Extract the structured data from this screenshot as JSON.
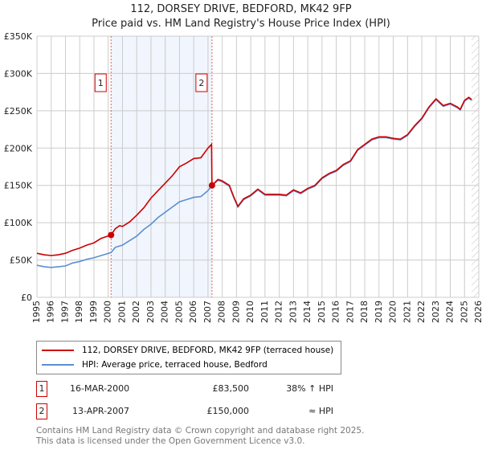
{
  "chart_data": {
    "type": "line",
    "title": "112, DORSEY DRIVE, BEDFORD, MK42 9FP",
    "subtitle": "Price paid vs. HM Land Registry's House Price Index (HPI)",
    "xlim": [
      1995,
      2026
    ],
    "ylim": [
      0,
      350000
    ],
    "x_ticks": [
      "1995",
      "1996",
      "1997",
      "1998",
      "1999",
      "2000",
      "2001",
      "2002",
      "2003",
      "2004",
      "2005",
      "2006",
      "2007",
      "2008",
      "2009",
      "2010",
      "2011",
      "2012",
      "2013",
      "2014",
      "2015",
      "2016",
      "2017",
      "2018",
      "2019",
      "2020",
      "2021",
      "2022",
      "2023",
      "2024",
      "2025",
      "2026"
    ],
    "y_ticks": [
      {
        "v": 0,
        "label": "£0"
      },
      {
        "v": 50000,
        "label": "£50K"
      },
      {
        "v": 100000,
        "label": "£100K"
      },
      {
        "v": 150000,
        "label": "£150K"
      },
      {
        "v": 200000,
        "label": "£200K"
      },
      {
        "v": 250000,
        "label": "£250K"
      },
      {
        "v": 300000,
        "label": "£300K"
      },
      {
        "v": 350000,
        "label": "£350K"
      }
    ],
    "grid": true,
    "series": [
      {
        "name": "112, DORSEY DRIVE, BEDFORD, MK42 9FP (terraced house)",
        "color": "#cc0000",
        "x": [
          1995,
          1995.5,
          1996,
          1996.5,
          1997,
          1997.5,
          1998,
          1998.5,
          1999,
          1999.5,
          2000.2,
          2000.5,
          2000.8,
          2001,
          2001.5,
          2002,
          2002.5,
          2003,
          2003.5,
          2004,
          2004.5,
          2005,
          2005.5,
          2006,
          2006.5,
          2007,
          2007.25,
          2007.28,
          2007.7,
          2008,
          2008.5,
          2008.8,
          2009.1,
          2009.5,
          2010,
          2010.5,
          2011,
          2011.5,
          2012,
          2012.5,
          2013,
          2013.5,
          2014,
          2014.5,
          2015,
          2015.5,
          2016,
          2016.5,
          2017,
          2017.5,
          2018,
          2018.5,
          2019,
          2019.5,
          2020,
          2020.5,
          2021,
          2021.5,
          2022,
          2022.5,
          2023,
          2023.5,
          2024,
          2024.5,
          2024.7,
          2025,
          2025.3,
          2025.5
        ],
        "y": [
          59000,
          57000,
          56000,
          57000,
          59000,
          63000,
          66000,
          70000,
          73000,
          79000,
          83500,
          92000,
          96000,
          95000,
          101000,
          110000,
          120000,
          133000,
          143000,
          153000,
          163000,
          175000,
          180000,
          186000,
          187000,
          200000,
          205000,
          150000,
          158000,
          156000,
          150000,
          135000,
          122000,
          132000,
          137000,
          145000,
          138000,
          138000,
          138000,
          137000,
          144000,
          140000,
          146000,
          150000,
          160000,
          166000,
          170000,
          178000,
          183000,
          198000,
          205000,
          212000,
          215000,
          215000,
          213000,
          212000,
          218000,
          230000,
          240000,
          255000,
          266000,
          257000,
          260000,
          255000,
          252000,
          264000,
          268000,
          265000
        ]
      },
      {
        "name": "HPI: Average price, terraced house, Bedford",
        "color": "#5b8fd0",
        "x": [
          1995,
          1995.5,
          1996,
          1996.5,
          1997,
          1997.5,
          1998,
          1998.5,
          1999,
          1999.5,
          2000.2,
          2000.5,
          2001,
          2001.5,
          2002,
          2002.5,
          2003,
          2003.5,
          2004,
          2004.5,
          2005,
          2005.5,
          2006,
          2006.5,
          2007,
          2007.28,
          2007.7,
          2008,
          2008.5,
          2008.8,
          2009.1,
          2009.5,
          2010,
          2010.5,
          2011,
          2011.5,
          2012,
          2012.5,
          2013,
          2013.5,
          2014,
          2014.5,
          2015,
          2015.5,
          2016,
          2016.5,
          2017,
          2017.5,
          2018,
          2018.5,
          2019,
          2019.5,
          2020,
          2020.5,
          2021,
          2021.5,
          2022,
          2022.5,
          2023,
          2023.5,
          2024,
          2024.5,
          2024.7,
          2025,
          2025.3,
          2025.5
        ],
        "y": [
          43000,
          41000,
          40000,
          41000,
          42000,
          46000,
          48000,
          51000,
          53000,
          56000,
          60000,
          67000,
          70000,
          76000,
          82000,
          91000,
          98000,
          107000,
          114000,
          121000,
          128000,
          131000,
          134000,
          135000,
          143000,
          150000,
          157000,
          155000,
          149000,
          134000,
          121000,
          131000,
          136000,
          144000,
          137000,
          137000,
          137000,
          136000,
          143000,
          139000,
          145000,
          149000,
          159000,
          165000,
          169000,
          177000,
          182000,
          197000,
          204000,
          211000,
          214000,
          214000,
          212000,
          211000,
          217000,
          229000,
          239000,
          254000,
          265000,
          256000,
          259000,
          254000,
          251000,
          263000,
          267000,
          264000
        ]
      }
    ],
    "annotations": [
      {
        "label": "1",
        "x": 2000.2,
        "y": 83500
      },
      {
        "label": "2",
        "x": 2007.28,
        "y": 150000
      }
    ],
    "shaded_range": [
      2000.2,
      2007.28
    ],
    "hatched_from": 2025.5
  },
  "legend": {
    "items": [
      "112, DORSEY DRIVE, BEDFORD, MK42 9FP (terraced house)",
      "HPI: Average price, terraced house, Bedford"
    ]
  },
  "transactions": [
    {
      "num": "1",
      "date": "16-MAR-2000",
      "price": "£83,500",
      "hpi": "38% ↑ HPI"
    },
    {
      "num": "2",
      "date": "13-APR-2007",
      "price": "£150,000",
      "hpi": "≈ HPI"
    }
  ],
  "footer": {
    "line1": "Contains HM Land Registry data © Crown copyright and database right 2025.",
    "line2": "This data is licensed under the Open Government Licence v3.0."
  }
}
